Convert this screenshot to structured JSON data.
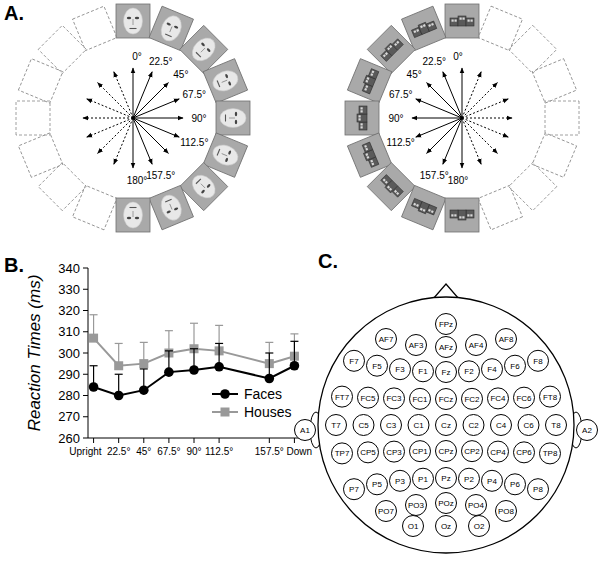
{
  "panel_labels": [
    "A.",
    "B.",
    "C."
  ],
  "rotation_panel": {
    "faces": {
      "angle_labels": [
        "0°",
        "22.5°",
        "45°",
        "67.5°",
        "90°",
        "112.5°",
        null,
        "157.5°",
        "180°"
      ]
    },
    "houses": {
      "angle_labels": [
        "0°",
        "22.5°",
        "45°",
        "67.5°",
        "90°",
        "112.5°",
        null,
        "157.5°",
        "180°"
      ]
    }
  },
  "chart_data": {
    "type": "line",
    "y_label": "Reaction Times (ms)",
    "x": [
      0,
      22.5,
      45,
      67.5,
      90,
      112.5,
      157.5,
      180
    ],
    "series": [
      {
        "name": "Faces",
        "color": "#000000",
        "marker": "circle",
        "values": [
          284,
          280,
          282.5,
          291,
          292,
          293.5,
          288,
          294
        ],
        "errors": [
          10,
          10,
          10,
          10,
          10,
          11,
          12,
          11.5
        ]
      },
      {
        "name": "Houses",
        "color": "#999999",
        "marker": "square",
        "values": [
          307,
          294,
          295,
          300,
          302,
          301,
          295,
          298.5
        ],
        "errors": [
          11,
          10.5,
          10,
          10.5,
          12,
          12,
          10,
          10.5
        ]
      }
    ],
    "xlim": [
      -5,
      185
    ],
    "xticks": [
      {
        "value": 0,
        "label": "Upright"
      },
      {
        "value": 22.5,
        "label": "22.5°"
      },
      {
        "value": 45,
        "label": "45°"
      },
      {
        "value": 67.5,
        "label": "67.5°"
      },
      {
        "value": 90,
        "label": "90°"
      },
      {
        "value": 112.5,
        "label": "112.5°"
      },
      {
        "value": 157.5,
        "label": "157.5°"
      },
      {
        "value": 180,
        "label": "Down"
      }
    ],
    "ylim": [
      260,
      340
    ],
    "yticks": [
      260,
      270,
      280,
      290,
      300,
      310,
      320,
      330,
      340
    ],
    "legend": "lower right"
  },
  "electrode_map": {
    "rows": [
      [
        "FPz"
      ],
      [
        "AF7",
        "AF3",
        "AFz",
        "AF4",
        "AF8"
      ],
      [
        "F7",
        "F5",
        "F3",
        "F1",
        "Fz",
        "F2",
        "F4",
        "F6",
        "F8"
      ],
      [
        "FT7",
        "FC5",
        "FC3",
        "FC1",
        "FCz",
        "FC2",
        "FC4",
        "FC6",
        "FT8"
      ],
      [
        "T7",
        "C5",
        "C3",
        "C1",
        "Cz",
        "C2",
        "C4",
        "C6",
        "T8"
      ],
      [
        "TP7",
        "CP5",
        "CP3",
        "CP1",
        "CPz",
        "CP2",
        "CP4",
        "CP6",
        "TP8"
      ],
      [
        "P7",
        "P5",
        "P3",
        "P1",
        "Pz",
        "P2",
        "P4",
        "P6",
        "P8"
      ],
      [
        "PO7",
        "PO3",
        "POz",
        "PO4",
        "PO8"
      ],
      [
        "O1",
        "Oz",
        "O2"
      ]
    ],
    "ears": [
      "A1",
      "A2"
    ]
  }
}
